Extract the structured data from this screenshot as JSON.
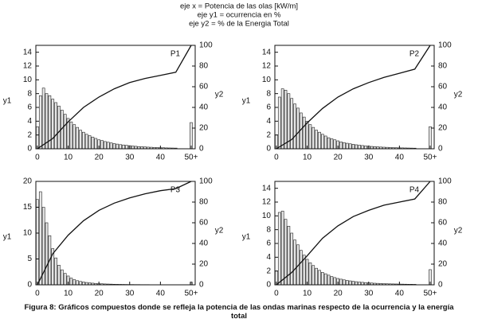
{
  "header": [
    "eje x = Potencia de las olas [kW/m]",
    "eje y1 = ocurrencia en %",
    "eje y2 = % de la Energia Total"
  ],
  "caption": "Figura 8: Gráficos compuestos donde se refleja la potencia de las ondas marinas respecto de la ocurrencia y la energía total",
  "chart_data": [
    {
      "type": "bar-line",
      "label": "P1",
      "ylabel": "y1",
      "y2label": "y2",
      "xlim": [
        -0.5,
        51.3
      ],
      "xticks": [
        0,
        10,
        20,
        30,
        40,
        {
          "value": 50,
          "label": "50+"
        }
      ],
      "ylim": [
        0,
        15
      ],
      "yticks": [
        0,
        2,
        4,
        6,
        8,
        10,
        12,
        14
      ],
      "y2lim": [
        0,
        100
      ],
      "y2ticks": [
        0,
        20,
        40,
        60,
        80,
        100
      ],
      "series": [
        {
          "type": "bar",
          "axis": "y",
          "color": "#e6e6e6",
          "x": [
            0,
            1,
            2,
            3,
            4,
            5,
            6,
            7,
            8,
            9,
            10,
            11,
            12,
            13,
            14,
            15,
            16,
            17,
            18,
            19,
            20,
            21,
            22,
            23,
            24,
            25,
            26,
            27,
            28,
            29,
            30,
            31,
            32,
            33,
            34,
            35,
            36,
            37,
            38,
            39,
            40,
            41,
            42,
            43,
            44,
            45,
            50
          ],
          "values": [
            3.2,
            7.7,
            8.8,
            8.0,
            7.7,
            7.2,
            6.7,
            6.2,
            5.6,
            5.0,
            4.4,
            3.9,
            3.5,
            3.1,
            2.7,
            2.4,
            2.1,
            1.9,
            1.7,
            1.5,
            1.3,
            1.2,
            1.05,
            0.95,
            0.85,
            0.75,
            0.68,
            0.6,
            0.55,
            0.5,
            0.45,
            0.4,
            0.36,
            0.32,
            0.3,
            0.27,
            0.24,
            0.22,
            0.2,
            0.18,
            0.16,
            0.15,
            0.13,
            0.12,
            0.11,
            0.1,
            3.8
          ]
        },
        {
          "type": "line",
          "axis": "y2",
          "color": "#111111",
          "x": [
            0,
            5,
            10,
            15,
            20,
            25,
            30,
            35,
            40,
            45,
            50
          ],
          "values": [
            0,
            10,
            26,
            40,
            50,
            58,
            64,
            68,
            71,
            74,
            100
          ]
        }
      ]
    },
    {
      "type": "bar-line",
      "label": "P2",
      "ylabel": "y1",
      "y2label": "y2",
      "xlim": [
        -0.5,
        51.3
      ],
      "xticks": [
        0,
        10,
        20,
        30,
        40,
        {
          "value": 50,
          "label": "50+"
        }
      ],
      "ylim": [
        0,
        15
      ],
      "yticks": [
        0,
        2,
        4,
        6,
        8,
        10,
        12,
        14
      ],
      "y2lim": [
        0,
        100
      ],
      "y2ticks": [
        0,
        20,
        40,
        60,
        80,
        100
      ],
      "series": [
        {
          "type": "bar",
          "axis": "y",
          "color": "#e6e6e6",
          "x": [
            0,
            1,
            2,
            3,
            4,
            5,
            6,
            7,
            8,
            9,
            10,
            11,
            12,
            13,
            14,
            15,
            16,
            17,
            18,
            19,
            20,
            21,
            22,
            23,
            24,
            25,
            26,
            27,
            28,
            29,
            30,
            31,
            32,
            33,
            34,
            35,
            36,
            37,
            38,
            39,
            40,
            41,
            42,
            43,
            44,
            45,
            50
          ],
          "values": [
            2.0,
            7.5,
            8.7,
            8.5,
            8.0,
            7.3,
            6.5,
            5.9,
            5.2,
            4.6,
            4.0,
            3.5,
            3.1,
            2.7,
            2.4,
            2.1,
            1.85,
            1.6,
            1.45,
            1.3,
            1.15,
            1.0,
            0.9,
            0.8,
            0.72,
            0.65,
            0.58,
            0.52,
            0.47,
            0.42,
            0.38,
            0.34,
            0.31,
            0.28,
            0.25,
            0.23,
            0.21,
            0.19,
            0.17,
            0.15,
            0.14,
            0.13,
            0.12,
            0.11,
            0.1,
            0.09,
            3.2
          ]
        },
        {
          "type": "line",
          "axis": "y2",
          "color": "#111111",
          "x": [
            0,
            5,
            10,
            15,
            20,
            25,
            30,
            35,
            40,
            45,
            50
          ],
          "values": [
            0,
            9,
            25,
            39,
            50,
            58,
            64,
            69,
            73,
            77,
            100
          ]
        }
      ]
    },
    {
      "type": "bar-line",
      "label": "P3",
      "ylabel": "y1",
      "y2label": "y2",
      "xlim": [
        -0.5,
        51.3
      ],
      "xticks": [
        0,
        10,
        20,
        30,
        40,
        {
          "value": 50,
          "label": "50+"
        }
      ],
      "ylim": [
        0,
        20
      ],
      "yticks": [
        0,
        5,
        10,
        15,
        20
      ],
      "y2lim": [
        0,
        100
      ],
      "y2ticks": [
        0,
        20,
        40,
        60,
        80,
        100
      ],
      "series": [
        {
          "type": "bar",
          "axis": "y",
          "color": "#e6e6e6",
          "x": [
            0,
            1,
            2,
            3,
            4,
            5,
            6,
            7,
            8,
            9,
            10,
            11,
            12,
            13,
            14,
            15,
            16,
            17,
            18,
            19,
            20,
            21,
            22,
            23,
            24,
            25,
            26,
            27,
            28,
            29,
            30,
            31,
            32,
            33,
            34,
            35,
            36,
            37,
            38,
            39,
            40,
            41,
            42,
            43,
            44,
            45,
            50
          ],
          "values": [
            16.5,
            18.0,
            15.0,
            12.0,
            9.5,
            7.0,
            5.2,
            3.8,
            2.9,
            2.2,
            1.7,
            1.3,
            1.0,
            0.8,
            0.65,
            0.55,
            0.45,
            0.38,
            0.32,
            0.27,
            0.23,
            0.2,
            0.17,
            0.15,
            0.13,
            0.11,
            0.1,
            0.09,
            0.08,
            0.07,
            0.06,
            0.06,
            0.05,
            0.05,
            0.04,
            0.04,
            0.04,
            0.03,
            0.03,
            0.03,
            0.03,
            0.02,
            0.02,
            0.02,
            0.02,
            0.02,
            0.5
          ]
        },
        {
          "type": "line",
          "axis": "y2",
          "color": "#111111",
          "x": [
            0,
            5,
            10,
            15,
            20,
            25,
            30,
            35,
            40,
            45,
            50
          ],
          "values": [
            0,
            30,
            48,
            62,
            72,
            79,
            84,
            88,
            91,
            93,
            100
          ]
        }
      ]
    },
    {
      "type": "bar-line",
      "label": "P4",
      "ylabel": "y1",
      "y2label": "y2",
      "xlim": [
        -0.5,
        51.3
      ],
      "xticks": [
        0,
        10,
        20,
        30,
        40,
        {
          "value": 50,
          "label": "50+"
        }
      ],
      "ylim": [
        0,
        15
      ],
      "yticks": [
        0,
        2,
        4,
        6,
        8,
        10,
        12,
        14
      ],
      "y2lim": [
        0,
        100
      ],
      "y2ticks": [
        0,
        20,
        40,
        60,
        80,
        100
      ],
      "series": [
        {
          "type": "bar",
          "axis": "y",
          "color": "#e6e6e6",
          "x": [
            0,
            1,
            2,
            3,
            4,
            5,
            6,
            7,
            8,
            9,
            10,
            11,
            12,
            13,
            14,
            15,
            16,
            17,
            18,
            19,
            20,
            21,
            22,
            23,
            24,
            25,
            26,
            27,
            28,
            29,
            30,
            31,
            32,
            33,
            34,
            35,
            36,
            37,
            38,
            39,
            40,
            41,
            42,
            43,
            44,
            45,
            50
          ],
          "values": [
            2.0,
            10.5,
            10.7,
            9.5,
            8.5,
            7.5,
            6.5,
            5.8,
            5.0,
            4.3,
            3.7,
            3.2,
            2.8,
            2.4,
            2.1,
            1.8,
            1.6,
            1.4,
            1.2,
            1.05,
            0.92,
            0.82,
            0.72,
            0.64,
            0.57,
            0.5,
            0.45,
            0.4,
            0.36,
            0.32,
            0.29,
            0.26,
            0.23,
            0.21,
            0.19,
            0.17,
            0.15,
            0.14,
            0.13,
            0.12,
            0.11,
            0.1,
            0.09,
            0.08,
            0.08,
            0.07,
            2.2
          ]
        },
        {
          "type": "line",
          "axis": "y2",
          "color": "#111111",
          "x": [
            0,
            5,
            10,
            15,
            20,
            25,
            30,
            35,
            40,
            45,
            50
          ],
          "values": [
            0,
            12,
            28,
            45,
            57,
            66,
            72,
            77,
            80,
            83,
            100
          ]
        }
      ]
    }
  ]
}
